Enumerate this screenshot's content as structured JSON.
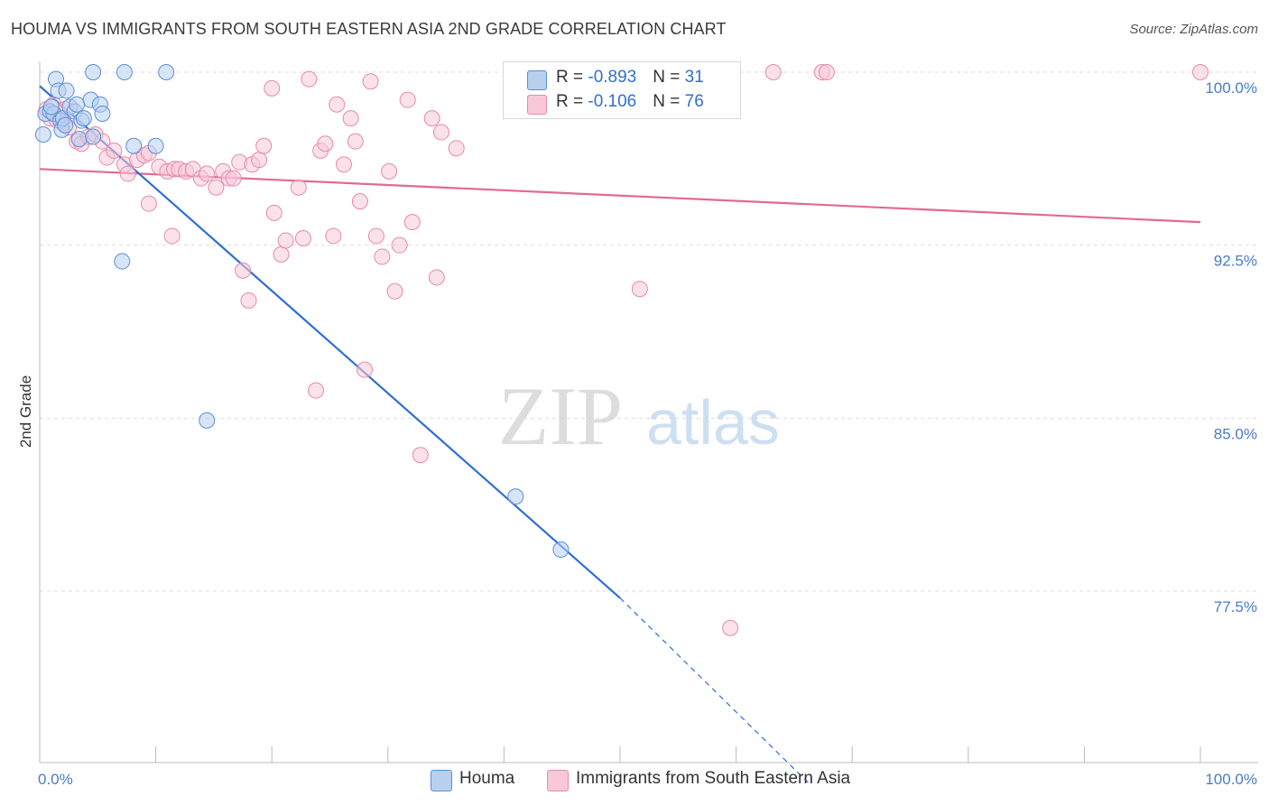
{
  "title": "HOUMA VS IMMIGRANTS FROM SOUTH EASTERN ASIA 2ND GRADE CORRELATION CHART",
  "source": "Source: ZipAtlas.com",
  "watermark": {
    "zip": "ZIP",
    "atlas": "atlas"
  },
  "colors": {
    "blue_fill": "#b8d0f0",
    "blue_stroke": "#5b8fd6",
    "blue_line": "#2f6fd1",
    "pink_fill": "#f8c8d8",
    "pink_stroke": "#e68aa8",
    "pink_line": "#e06a94",
    "tick_text": "#4a7cc9",
    "grid": "#dddddd"
  },
  "legend_top": {
    "rows": [
      {
        "r_label": "R = ",
        "r_value": "-0.893",
        "n_label": "N = ",
        "n_value": "31",
        "color": "blue"
      },
      {
        "r_label": "R = ",
        "r_value": "-0.106",
        "n_label": "N = ",
        "n_value": "76",
        "color": "pink"
      }
    ]
  },
  "legend_bottom": {
    "items": [
      {
        "label": "Houma",
        "color": "blue"
      },
      {
        "label": "Immigrants from South Eastern Asia",
        "color": "pink"
      }
    ]
  },
  "chart_data": {
    "type": "scatter",
    "title": "HOUMA VS IMMIGRANTS FROM SOUTH EASTERN ASIA 2ND GRADE CORRELATION CHART",
    "xlabel": "",
    "ylabel": "2nd Grade",
    "xlim": [
      0,
      100
    ],
    "ylim": [
      69.2,
      101.3
    ],
    "x_tick_labels": [
      "0.0%",
      "100.0%"
    ],
    "y_ticks": [
      100.0,
      92.5,
      85.0,
      77.5
    ],
    "y_tick_labels": [
      "100.0%",
      "92.5%",
      "85.0%",
      "77.5%"
    ],
    "grid": true,
    "series": [
      {
        "name": "Houma",
        "color": "blue",
        "points": [
          [
            0.3,
            97.3
          ],
          [
            0.5,
            98.2
          ],
          [
            0.9,
            98.3
          ],
          [
            1.2,
            98.2
          ],
          [
            1.4,
            99.7
          ],
          [
            1.6,
            99.2
          ],
          [
            1.8,
            97.9
          ],
          [
            1.9,
            97.5
          ],
          [
            2.0,
            98.0
          ],
          [
            2.3,
            99.2
          ],
          [
            2.6,
            98.5
          ],
          [
            3.0,
            98.3
          ],
          [
            3.2,
            98.6
          ],
          [
            3.4,
            97.1
          ],
          [
            3.6,
            97.9
          ],
          [
            3.8,
            98.0
          ],
          [
            4.4,
            98.8
          ],
          [
            5.2,
            98.6
          ],
          [
            5.4,
            98.2
          ],
          [
            4.6,
            97.2
          ],
          [
            7.3,
            100.0
          ],
          [
            4.6,
            100.0
          ],
          [
            10.9,
            100.0
          ],
          [
            7.1,
            91.8
          ],
          [
            8.1,
            96.8
          ],
          [
            10.0,
            96.8
          ],
          [
            14.4,
            84.9
          ],
          [
            41.0,
            81.6
          ],
          [
            44.9,
            79.3
          ],
          [
            2.2,
            97.7
          ],
          [
            1.0,
            98.5
          ]
        ],
        "trend": {
          "x0": 0,
          "y0": 99.4,
          "x1": 50.0,
          "y1": 77.2,
          "dash_x1": 66.2,
          "dash_y1": 69.2
        }
      },
      {
        "name": "Immigrants from South Eastern Asia",
        "color": "pink",
        "points": [
          [
            0.6,
            98.4
          ],
          [
            0.9,
            98.0
          ],
          [
            1.2,
            98.6
          ],
          [
            1.5,
            97.9
          ],
          [
            1.8,
            98.2
          ],
          [
            2.0,
            97.8
          ],
          [
            2.2,
            98.4
          ],
          [
            2.5,
            97.6
          ],
          [
            3.2,
            97.0
          ],
          [
            3.6,
            96.9
          ],
          [
            4.2,
            97.2
          ],
          [
            4.8,
            97.3
          ],
          [
            5.4,
            97.0
          ],
          [
            5.8,
            96.3
          ],
          [
            6.4,
            96.6
          ],
          [
            7.3,
            96.0
          ],
          [
            7.6,
            95.6
          ],
          [
            8.4,
            96.2
          ],
          [
            9.0,
            96.4
          ],
          [
            9.4,
            96.5
          ],
          [
            10.3,
            95.9
          ],
          [
            11.0,
            95.7
          ],
          [
            11.6,
            95.8
          ],
          [
            12.0,
            95.8
          ],
          [
            12.6,
            95.7
          ],
          [
            13.2,
            95.8
          ],
          [
            13.9,
            95.4
          ],
          [
            14.4,
            95.6
          ],
          [
            15.2,
            95.0
          ],
          [
            15.8,
            95.7
          ],
          [
            16.3,
            95.4
          ],
          [
            16.7,
            95.4
          ],
          [
            17.2,
            96.1
          ],
          [
            17.5,
            91.4
          ],
          [
            18.0,
            90.1
          ],
          [
            18.3,
            96.0
          ],
          [
            18.9,
            96.2
          ],
          [
            19.3,
            96.8
          ],
          [
            20.0,
            99.3
          ],
          [
            20.2,
            93.9
          ],
          [
            20.8,
            92.1
          ],
          [
            21.2,
            92.7
          ],
          [
            22.3,
            95.0
          ],
          [
            22.7,
            92.8
          ],
          [
            23.2,
            99.7
          ],
          [
            23.8,
            86.2
          ],
          [
            24.2,
            96.6
          ],
          [
            24.6,
            96.9
          ],
          [
            25.3,
            92.9
          ],
          [
            25.6,
            98.6
          ],
          [
            26.2,
            96.0
          ],
          [
            26.8,
            98.0
          ],
          [
            27.2,
            97.0
          ],
          [
            27.6,
            94.4
          ],
          [
            28.0,
            87.1
          ],
          [
            28.5,
            99.6
          ],
          [
            29.0,
            92.9
          ],
          [
            29.5,
            92.0
          ],
          [
            30.1,
            95.7
          ],
          [
            30.6,
            90.5
          ],
          [
            31.0,
            92.5
          ],
          [
            31.7,
            98.8
          ],
          [
            32.1,
            93.5
          ],
          [
            32.8,
            83.4
          ],
          [
            33.8,
            98.0
          ],
          [
            34.2,
            91.1
          ],
          [
            34.6,
            97.4
          ],
          [
            35.9,
            96.7
          ],
          [
            51.7,
            90.6
          ],
          [
            59.5,
            75.9
          ],
          [
            63.2,
            100.0
          ],
          [
            67.4,
            100.0
          ],
          [
            67.8,
            100.0
          ],
          [
            100.0,
            100.0
          ],
          [
            9.4,
            94.3
          ],
          [
            11.4,
            92.9
          ]
        ],
        "trend": {
          "x0": 0,
          "y0": 95.8,
          "x1": 100.0,
          "y1": 93.5
        }
      }
    ]
  }
}
